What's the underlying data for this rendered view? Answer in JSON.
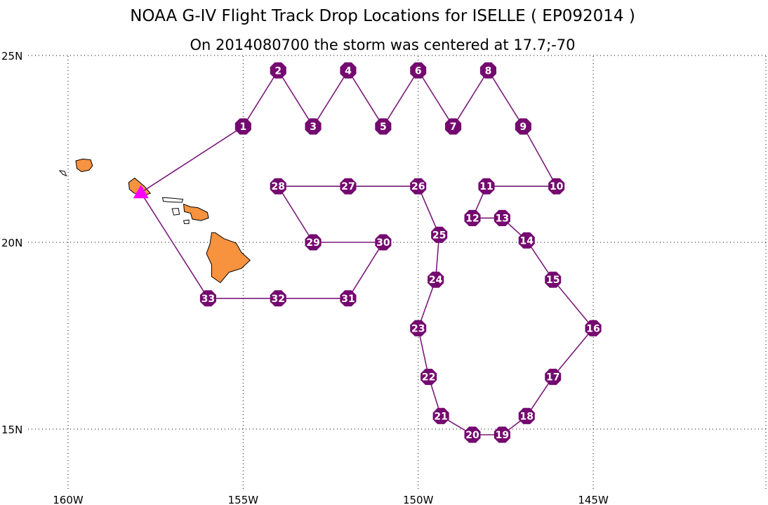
{
  "title": "NOAA G-IV Flight Track Drop Locations for ISELLE ( EP092014 )",
  "subtitle": "On 2014080700 the storm was centered at 17.7;-70",
  "colors": {
    "track": "#7a1a7a",
    "marker_fill": "#74096f",
    "marker_text": "#ffffff",
    "land": "#f7923f",
    "land_outline": "#000000",
    "origin": "#ff00ff",
    "grid": "#000000"
  },
  "map": {
    "lon_range": [
      -160,
      -140
    ],
    "lat_range": [
      13.4,
      25.5
    ],
    "lon_ticks": [
      {
        "lon": -160,
        "label": "160W"
      },
      {
        "lon": -155,
        "label": "155W"
      },
      {
        "lon": -150,
        "label": "150W"
      },
      {
        "lon": -145,
        "label": "145W"
      }
    ],
    "lat_ticks": [
      {
        "lat": 25,
        "label": "25N"
      },
      {
        "lat": 20,
        "label": "20N"
      },
      {
        "lat": 15,
        "label": "15N"
      }
    ],
    "grid": "dotted",
    "origin": {
      "name": "departure-point",
      "symbol": "triangle",
      "lon": -157.92,
      "lat": 21.33
    },
    "islands": [
      {
        "name": "kauai",
        "points": [
          [
            -159.78,
            22.18
          ],
          [
            -159.58,
            22.23
          ],
          [
            -159.36,
            22.21
          ],
          [
            -159.3,
            22.05
          ],
          [
            -159.4,
            21.93
          ],
          [
            -159.62,
            21.89
          ],
          [
            -159.75,
            21.98
          ]
        ]
      },
      {
        "name": "niihau",
        "points": [
          [
            -160.24,
            21.92
          ],
          [
            -160.1,
            21.9
          ],
          [
            -160.05,
            21.78
          ],
          [
            -160.15,
            21.82
          ]
        ]
      },
      {
        "name": "oahu",
        "points": [
          [
            -158.27,
            21.6
          ],
          [
            -158.1,
            21.72
          ],
          [
            -157.82,
            21.5
          ],
          [
            -157.65,
            21.31
          ],
          [
            -157.85,
            21.25
          ],
          [
            -158.12,
            21.32
          ],
          [
            -158.25,
            21.42
          ]
        ]
      },
      {
        "name": "molokai",
        "points": [
          [
            -157.3,
            21.2
          ],
          [
            -157.0,
            21.18
          ],
          [
            -156.72,
            21.15
          ],
          [
            -156.75,
            21.07
          ],
          [
            -157.1,
            21.08
          ],
          [
            -157.28,
            21.1
          ]
        ]
      },
      {
        "name": "lanai",
        "points": [
          [
            -157.03,
            20.9
          ],
          [
            -156.85,
            20.91
          ],
          [
            -156.82,
            20.75
          ],
          [
            -156.98,
            20.73
          ]
        ]
      },
      {
        "name": "kahoolawe",
        "points": [
          [
            -156.7,
            20.58
          ],
          [
            -156.55,
            20.6
          ],
          [
            -156.55,
            20.5
          ],
          [
            -156.68,
            20.5
          ]
        ]
      },
      {
        "name": "maui",
        "points": [
          [
            -156.7,
            21.02
          ],
          [
            -156.5,
            20.95
          ],
          [
            -156.3,
            20.93
          ],
          [
            -156.02,
            20.8
          ],
          [
            -155.99,
            20.65
          ],
          [
            -156.2,
            20.58
          ],
          [
            -156.45,
            20.62
          ],
          [
            -156.5,
            20.78
          ],
          [
            -156.68,
            20.82
          ]
        ]
      },
      {
        "name": "hawaii",
        "points": [
          [
            -155.9,
            20.26
          ],
          [
            -155.8,
            20.26
          ],
          [
            -155.55,
            20.1
          ],
          [
            -155.2,
            19.98
          ],
          [
            -155.05,
            19.73
          ],
          [
            -154.8,
            19.52
          ],
          [
            -155.05,
            19.3
          ],
          [
            -155.4,
            19.2
          ],
          [
            -155.65,
            18.92
          ],
          [
            -155.9,
            19.08
          ],
          [
            -155.9,
            19.4
          ],
          [
            -156.05,
            19.7
          ],
          [
            -155.95,
            19.95
          ]
        ]
      }
    ]
  },
  "drops": [
    {
      "label": "1",
      "lon": -155,
      "lat": 23.1
    },
    {
      "label": "2",
      "lon": -154,
      "lat": 24.6
    },
    {
      "label": "3",
      "lon": -153,
      "lat": 23.1
    },
    {
      "label": "4",
      "lon": -152,
      "lat": 24.6
    },
    {
      "label": "5",
      "lon": -151,
      "lat": 23.1
    },
    {
      "label": "6",
      "lon": -150,
      "lat": 24.6
    },
    {
      "label": "7",
      "lon": -149,
      "lat": 23.1
    },
    {
      "label": "8",
      "lon": -148,
      "lat": 24.6
    },
    {
      "label": "9",
      "lon": -147,
      "lat": 23.1
    },
    {
      "label": "10",
      "lon": -146.05,
      "lat": 21.5
    },
    {
      "label": "11",
      "lon": -148.05,
      "lat": 21.5
    },
    {
      "label": "12",
      "lon": -148.45,
      "lat": 20.65
    },
    {
      "label": "13",
      "lon": -147.6,
      "lat": 20.65
    },
    {
      "label": "14",
      "lon": -146.9,
      "lat": 20.05
    },
    {
      "label": "15",
      "lon": -146.15,
      "lat": 19.0
    },
    {
      "label": "16",
      "lon": -145,
      "lat": 17.7
    },
    {
      "label": "17",
      "lon": -146.15,
      "lat": 16.4
    },
    {
      "label": "18",
      "lon": -146.9,
      "lat": 15.35
    },
    {
      "label": "19",
      "lon": -147.6,
      "lat": 14.85
    },
    {
      "label": "20",
      "lon": -148.45,
      "lat": 14.85
    },
    {
      "label": "21",
      "lon": -149.35,
      "lat": 15.35
    },
    {
      "label": "22",
      "lon": -149.7,
      "lat": 16.4
    },
    {
      "label": "23",
      "lon": -150,
      "lat": 17.7
    },
    {
      "label": "24",
      "lon": -149.5,
      "lat": 19.0
    },
    {
      "label": "25",
      "lon": -149.4,
      "lat": 20.2
    },
    {
      "label": "26",
      "lon": -150,
      "lat": 21.5
    },
    {
      "label": "27",
      "lon": -152,
      "lat": 21.5
    },
    {
      "label": "28",
      "lon": -154,
      "lat": 21.5
    },
    {
      "label": "29",
      "lon": -153,
      "lat": 20.0
    },
    {
      "label": "30",
      "lon": -151,
      "lat": 20.0
    },
    {
      "label": "31",
      "lon": -152,
      "lat": 18.5
    },
    {
      "label": "32",
      "lon": -154,
      "lat": 18.5
    },
    {
      "label": "33",
      "lon": -156,
      "lat": 18.5
    }
  ]
}
